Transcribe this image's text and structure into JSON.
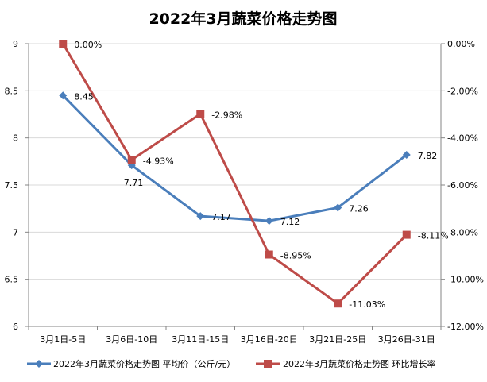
{
  "chart_data": {
    "type": "line",
    "title": "2022年3月蔬菜价格走势图",
    "categories": [
      "3月1日-5日",
      "3月6日-10日",
      "3月11日-15日",
      "3月16日-20日",
      "3月21日-25日",
      "3月26日-31日"
    ],
    "series": [
      {
        "name": "2022年3月蔬菜价格走势图 平均价（公斤/元）",
        "axis": "left",
        "marker": "diamond",
        "color": "#4a7ebb",
        "values": [
          8.45,
          7.71,
          7.17,
          7.12,
          7.26,
          7.82
        ],
        "labels": [
          "8.45",
          "7.71",
          "7.17",
          "7.12",
          "7.26",
          "7.82"
        ]
      },
      {
        "name": "2022年3月蔬菜价格走势图 环比增长率",
        "axis": "right",
        "marker": "square",
        "color": "#be4b48",
        "values": [
          0.0,
          -4.93,
          -2.98,
          -8.95,
          -11.03,
          -8.11
        ],
        "labels": [
          "0.00%",
          "-4.93%",
          "-2.98%",
          "-8.95%",
          "-11.03%",
          "-8.11%"
        ]
      }
    ],
    "left_axis": {
      "ylim": [
        6,
        9
      ],
      "ticks": [
        "6",
        "6.5",
        "7",
        "7.5",
        "8",
        "8.5",
        "9"
      ]
    },
    "right_axis": {
      "ylim": [
        -12,
        0
      ],
      "ticks": [
        "-12.00%",
        "-10.00%",
        "-8.00%",
        "-6.00%",
        "-4.00%",
        "-2.00%",
        "0.00%"
      ]
    },
    "grid": true,
    "legend_position": "bottom"
  }
}
